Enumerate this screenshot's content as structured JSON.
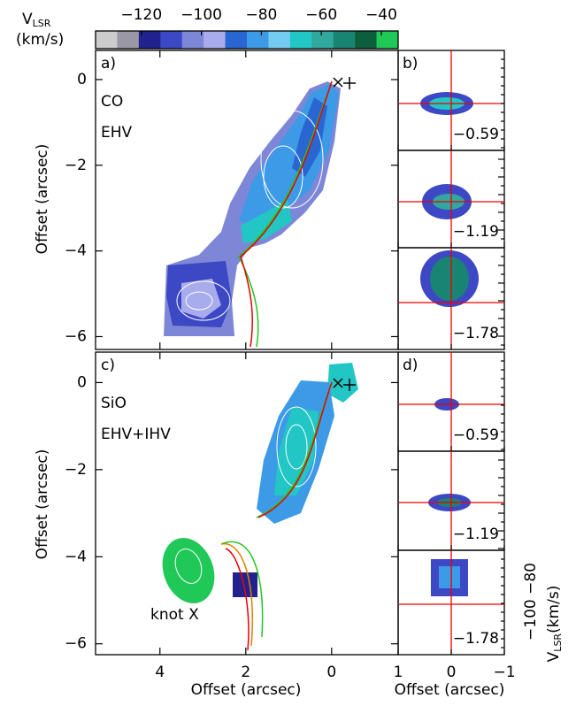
{
  "colorbar": {
    "label": "V",
    "label_sub": "LSR",
    "unit": "(km/s)",
    "lim": [
      -135.3,
      -34.4
    ],
    "ticks": [
      {
        "value": -120,
        "label": "−120"
      },
      {
        "value": -100,
        "label": "−100"
      },
      {
        "value": -80,
        "label": "−80"
      },
      {
        "value": -60,
        "label": "−60"
      },
      {
        "value": -40,
        "label": "−40"
      }
    ],
    "colors": [
      "#cccccc",
      "#9a98a6",
      "#22228e",
      "#3c48c4",
      "#7e86d8",
      "#a8acec",
      "#2a66d2",
      "#3c9ae6",
      "#74ccf2",
      "#22c6c4",
      "#30a89e",
      "#1a8472",
      "#0c5e3c",
      "#20c858"
    ]
  },
  "main": {
    "xlim": [
      5.5,
      -1.55
    ],
    "xticks": [
      4,
      2,
      0
    ],
    "xlabel": "Offset (arcsec)",
    "ylabel": "Offset (arcsec)",
    "yticks": [
      0,
      {
        "value": -2,
        "label": "−2"
      },
      {
        "value": -4,
        "label": "−4"
      },
      {
        "value": -6,
        "label": "−6"
      }
    ],
    "panels": [
      {
        "label": "a)",
        "species": "CO",
        "regime": "EHV",
        "ylim": [
          0.68,
          -6.3
        ]
      },
      {
        "label": "c)",
        "species": "SiO",
        "regime": "EHV+IHV",
        "annotation": "knot X",
        "ylim": [
          0.7,
          -6.25
        ]
      }
    ]
  },
  "side": {
    "xlim": [
      1,
      -1
    ],
    "xticks": [
      1,
      0,
      {
        "value": -1,
        "label": "−1"
      }
    ],
    "xlabel": "Offset (arcsec)",
    "groups": [
      {
        "label": "b)",
        "offsets": [
          "−0.59",
          "−1.19",
          "−1.78"
        ]
      },
      {
        "label": "d)",
        "offsets": [
          "−0.59",
          "−1.19",
          "−1.78"
        ]
      }
    ],
    "vlabel_ticks": "−100 −80",
    "vlabel": "V",
    "vlabel_sub": "LSR",
    "vlabel_unit": "(km/s)"
  }
}
